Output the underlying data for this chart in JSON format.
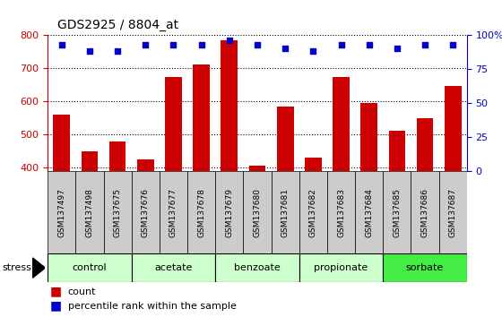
{
  "title": "GDS2925 / 8804_at",
  "samples": [
    "GSM137497",
    "GSM137498",
    "GSM137675",
    "GSM137676",
    "GSM137677",
    "GSM137678",
    "GSM137679",
    "GSM137680",
    "GSM137681",
    "GSM137682",
    "GSM137683",
    "GSM137684",
    "GSM137685",
    "GSM137686",
    "GSM137687"
  ],
  "counts": [
    560,
    450,
    480,
    425,
    672,
    710,
    785,
    407,
    585,
    430,
    672,
    595,
    512,
    550,
    645
  ],
  "percentiles": [
    93,
    88,
    88,
    93,
    93,
    93,
    96,
    93,
    90,
    88,
    93,
    93,
    90,
    93,
    93
  ],
  "groups": [
    {
      "name": "control",
      "indices": [
        0,
        1,
        2
      ],
      "color": "#ccffcc"
    },
    {
      "name": "acetate",
      "indices": [
        3,
        4,
        5
      ],
      "color": "#ccffcc"
    },
    {
      "name": "benzoate",
      "indices": [
        6,
        7,
        8
      ],
      "color": "#ccffcc"
    },
    {
      "name": "propionate",
      "indices": [
        9,
        10,
        11
      ],
      "color": "#ccffcc"
    },
    {
      "name": "sorbate",
      "indices": [
        12,
        13,
        14
      ],
      "color": "#44ee44"
    }
  ],
  "bar_color": "#cc0000",
  "dot_color": "#0000cc",
  "ylim_left": [
    390,
    800
  ],
  "ylim_right": [
    0,
    100
  ],
  "yticks_left": [
    400,
    500,
    600,
    700,
    800
  ],
  "yticks_right": [
    0,
    25,
    50,
    75,
    100
  ],
  "bg_color": "#ffffff",
  "label_bg_color": "#cccccc",
  "axis_color_left": "#cc0000",
  "axis_color_right": "#0000cc",
  "group_colors": [
    "#ccffcc",
    "#ccffcc",
    "#ccffcc",
    "#ccffcc",
    "#44ee44"
  ]
}
